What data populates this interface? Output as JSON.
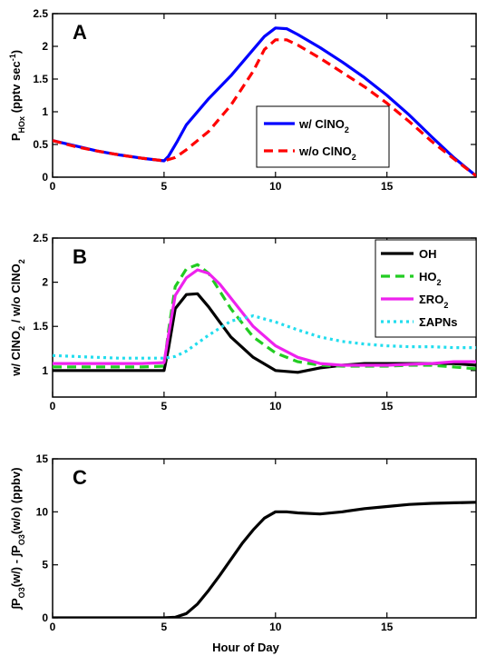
{
  "figure": {
    "xlabel": "Hour of Day",
    "x_ticks": [
      "0",
      "5",
      "10",
      "15"
    ]
  },
  "chart_data": [
    {
      "type": "line",
      "panel_label": "A",
      "ylabel": {
        "main": "P",
        "sub": "HOx",
        "rest": " (pptv sec",
        "sup": "-1",
        "end": ")"
      },
      "xlim": [
        0,
        19
      ],
      "ylim": [
        0,
        2.5
      ],
      "y_ticks": [
        "0",
        "0.5",
        "1",
        "1.5",
        "2",
        "2.5"
      ],
      "legend_position": "center-right",
      "series": [
        {
          "name": "w/ ClNO",
          "name_sub": "2",
          "color": "#0000ff",
          "dash": "solid",
          "x": [
            0,
            1,
            2,
            3,
            4,
            5,
            5.2,
            5.6,
            6,
            7,
            8,
            9,
            9.5,
            10,
            10.5,
            11,
            12,
            13,
            14,
            15,
            16,
            17,
            18,
            19
          ],
          "y": [
            0.56,
            0.48,
            0.4,
            0.34,
            0.29,
            0.25,
            0.32,
            0.55,
            0.8,
            1.2,
            1.55,
            1.95,
            2.15,
            2.28,
            2.27,
            2.18,
            1.98,
            1.76,
            1.52,
            1.25,
            0.95,
            0.62,
            0.3,
            0.02
          ]
        },
        {
          "name": "w/o ClNO",
          "name_sub": "2",
          "color": "#ff0000",
          "dash": "dashed",
          "x": [
            0,
            1,
            2,
            3,
            4,
            5,
            5.5,
            6,
            7,
            8,
            9,
            9.5,
            10,
            10.5,
            11,
            12,
            13,
            14,
            15,
            16,
            17,
            18,
            19
          ],
          "y": [
            0.56,
            0.47,
            0.4,
            0.34,
            0.29,
            0.25,
            0.3,
            0.42,
            0.7,
            1.1,
            1.62,
            1.95,
            2.1,
            2.1,
            2.02,
            1.82,
            1.6,
            1.38,
            1.13,
            0.85,
            0.55,
            0.28,
            0.02
          ]
        }
      ]
    },
    {
      "type": "line",
      "panel_label": "B",
      "ylabel": {
        "a": "w/ ClNO",
        "a_sub": "2",
        "b": " / w/o ClNO",
        "b_sub": "2"
      },
      "xlim": [
        0,
        19
      ],
      "ylim": [
        0.7,
        2.5
      ],
      "y_ticks": [
        "1",
        "1.5",
        "2",
        "2.5"
      ],
      "legend_position": "top-right",
      "series": [
        {
          "name": "OH",
          "name_sub": "",
          "color": "#000000",
          "dash": "solid",
          "x": [
            0,
            1,
            2,
            3,
            4,
            5,
            5.2,
            5.5,
            6,
            6.5,
            7,
            7.5,
            8,
            9,
            10,
            11,
            12,
            13,
            14,
            15,
            16,
            17,
            18,
            19
          ],
          "y": [
            1.0,
            1.0,
            1.0,
            1.0,
            1.0,
            1.0,
            1.25,
            1.7,
            1.86,
            1.87,
            1.72,
            1.55,
            1.38,
            1.15,
            1.0,
            0.98,
            1.03,
            1.06,
            1.08,
            1.08,
            1.08,
            1.08,
            1.08,
            1.06
          ]
        },
        {
          "name": "HO",
          "name_sub": "2",
          "color": "#22cc22",
          "dash": "dashed",
          "x": [
            0,
            1,
            2,
            3,
            4,
            5,
            5.2,
            5.5,
            6,
            6.5,
            7,
            7.5,
            8,
            9,
            10,
            11,
            12,
            13,
            14,
            15,
            16,
            17,
            18,
            19
          ],
          "y": [
            1.04,
            1.04,
            1.04,
            1.04,
            1.04,
            1.05,
            1.45,
            1.95,
            2.15,
            2.2,
            2.1,
            1.9,
            1.7,
            1.38,
            1.2,
            1.1,
            1.06,
            1.05,
            1.05,
            1.05,
            1.06,
            1.06,
            1.04,
            1.02
          ]
        },
        {
          "name": "ΣRO",
          "name_sub": "2",
          "color": "#ee22ee",
          "dash": "solid",
          "x": [
            0,
            1,
            2,
            3,
            4,
            5,
            5.2,
            5.5,
            6,
            6.5,
            7,
            7.5,
            8,
            9,
            10,
            11,
            12,
            13,
            14,
            15,
            16,
            17,
            18,
            19
          ],
          "y": [
            1.08,
            1.08,
            1.08,
            1.08,
            1.08,
            1.09,
            1.4,
            1.85,
            2.05,
            2.14,
            2.1,
            1.98,
            1.82,
            1.5,
            1.28,
            1.15,
            1.08,
            1.06,
            1.06,
            1.06,
            1.07,
            1.08,
            1.1,
            1.1
          ]
        },
        {
          "name": "ΣAPNs",
          "name_sub": "",
          "color": "#22ddee",
          "dash": "dotted",
          "x": [
            0,
            1,
            2,
            3,
            4,
            5,
            5.5,
            6,
            7,
            8,
            9,
            10,
            11,
            12,
            13,
            14,
            15,
            16,
            17,
            18,
            19
          ],
          "y": [
            1.17,
            1.16,
            1.15,
            1.14,
            1.14,
            1.14,
            1.16,
            1.22,
            1.4,
            1.56,
            1.62,
            1.55,
            1.46,
            1.38,
            1.33,
            1.3,
            1.28,
            1.27,
            1.27,
            1.26,
            1.26
          ]
        }
      ]
    },
    {
      "type": "line",
      "panel_label": "C",
      "ylabel": {
        "a": "∫P",
        "a_sub": "O3",
        "b": "(w/) - ∫P",
        "b_sub": "O3",
        "c": "(w/o) (ppbv)"
      },
      "xlim": [
        0,
        19
      ],
      "ylim": [
        0,
        15
      ],
      "y_ticks": [
        "0",
        "5",
        "10",
        "15"
      ],
      "series": [
        {
          "name": "",
          "color": "#000000",
          "dash": "solid",
          "x": [
            0,
            1,
            2,
            3,
            4,
            5,
            5.5,
            6,
            6.5,
            7,
            7.5,
            8,
            8.5,
            9,
            9.5,
            10,
            10.5,
            11,
            12,
            13,
            14,
            15,
            16,
            17,
            18,
            19
          ],
          "y": [
            0,
            0,
            0,
            0,
            0,
            0,
            0.05,
            0.4,
            1.3,
            2.6,
            4.0,
            5.5,
            7.0,
            8.3,
            9.4,
            10.0,
            10.0,
            9.9,
            9.8,
            10.0,
            10.3,
            10.5,
            10.7,
            10.8,
            10.85,
            10.9
          ]
        }
      ]
    }
  ]
}
